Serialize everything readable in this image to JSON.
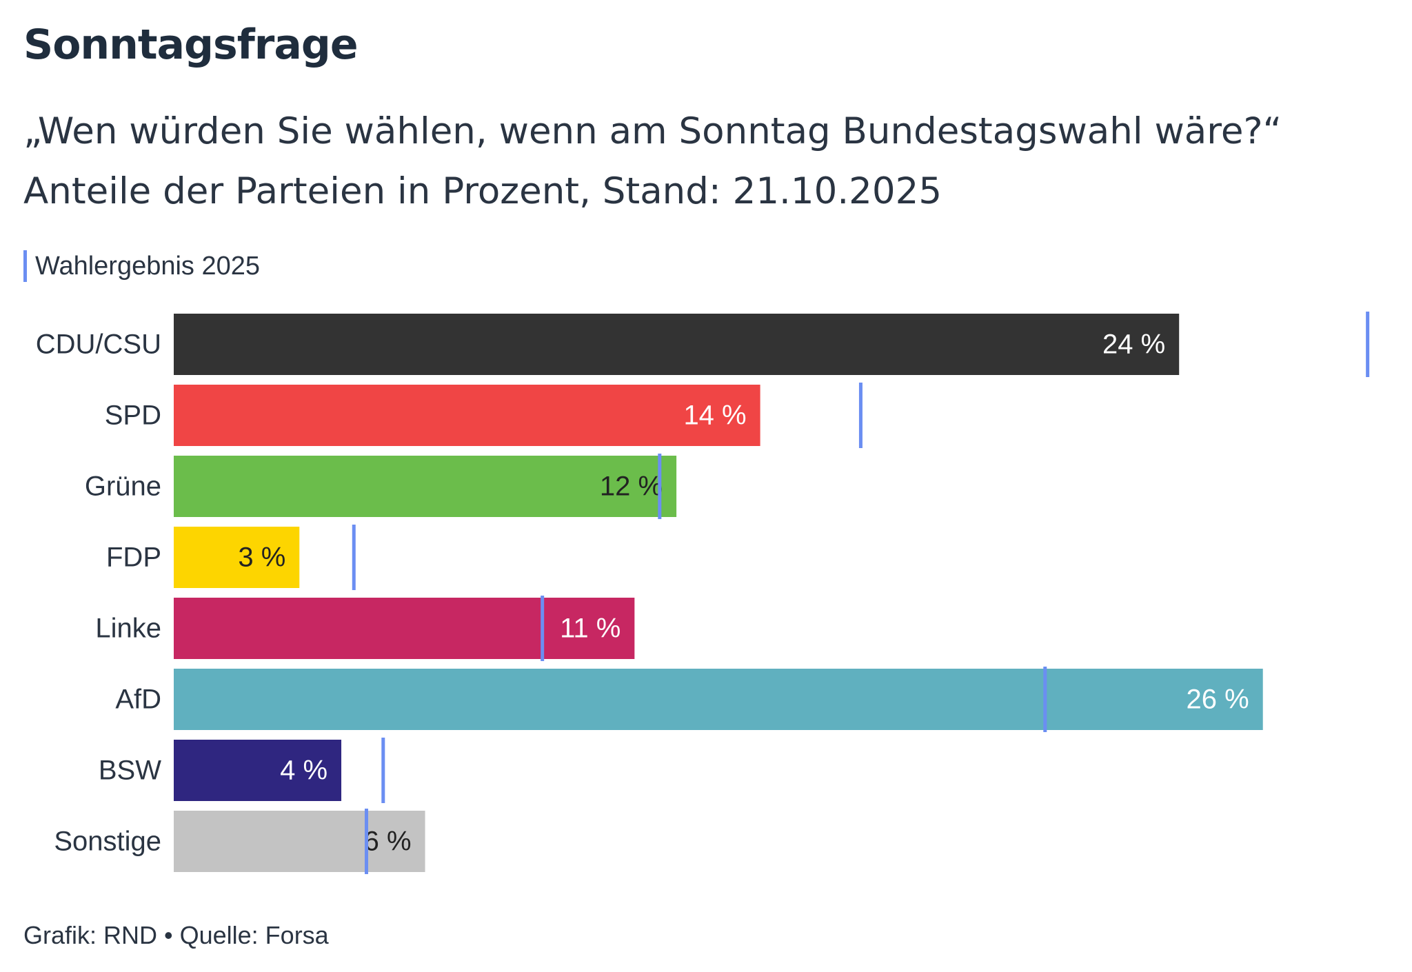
{
  "chart_data": {
    "type": "bar",
    "orientation": "horizontal",
    "title": "Sonntagsfrage",
    "subtitle_line1": "„Wen würden Sie wählen, wenn am Sonntag Bundestagswahl wäre?“",
    "subtitle_line2": "Anteile der Parteien in Prozent, Stand: 21.10.2025",
    "legend_label": "Wahlergebnis 2025",
    "legend_color": "#6b8ef2",
    "xlim": [
      0,
      29
    ],
    "categories": [
      "CDU/CSU",
      "SPD",
      "Grüne",
      "FDP",
      "Linke",
      "AfD",
      "BSW",
      "Sonstige"
    ],
    "values": [
      24,
      14,
      12,
      3,
      11,
      26,
      4,
      6
    ],
    "value_labels": [
      "24 %",
      "14 %",
      "12 %",
      "3 %",
      "11 %",
      "26 %",
      "4 %",
      "6 %"
    ],
    "election_2025": [
      28.5,
      16.4,
      11.6,
      4.3,
      8.8,
      20.8,
      5.0,
      4.6
    ],
    "colors": [
      "#333333",
      "#f04545",
      "#6bbd4b",
      "#fdd500",
      "#c72762",
      "#60b0bf",
      "#2f2680",
      "#c3c3c3"
    ],
    "label_colors": [
      "#ffffff",
      "#ffffff",
      "#222222",
      "#222222",
      "#ffffff",
      "#ffffff",
      "#ffffff",
      "#222222"
    ]
  },
  "footer": {
    "text": "Grafik: RND • Quelle: Forsa"
  }
}
